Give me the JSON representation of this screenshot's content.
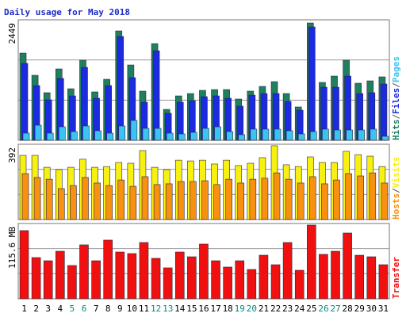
{
  "title": "Daily usage for May 2018",
  "chart_data": [
    {
      "type": "bar",
      "ylim": [
        0,
        2449
      ],
      "yticks": [
        2449
      ],
      "grid_divisions": 3,
      "legend_separator": "/",
      "legend_reversed": false,
      "series": [
        {
          "name": "Hits",
          "color": "#1f8060",
          "values": [
            1772,
            1321,
            967,
            1450,
            1047,
            1627,
            983,
            1240,
            2223,
            1530,
            999,
            1965,
            628,
            902,
            950,
            1015,
            1031,
            1031,
            838,
            999,
            1095,
            1192,
            950,
            677,
            2384,
            1176,
            1305,
            1627,
            1160,
            1208,
            1289
          ]
        },
        {
          "name": "Files",
          "color": "#1c2ae0",
          "values": [
            1563,
            1112,
            822,
            1257,
            902,
            1482,
            854,
            1112,
            2110,
            1273,
            773,
            1820,
            548,
            773,
            806,
            886,
            902,
            854,
            693,
            918,
            950,
            950,
            789,
            612,
            2304,
            1079,
            1079,
            1305,
            950,
            967,
            1144
          ]
        },
        {
          "name": "Pages",
          "color": "#3cc4f0",
          "values": [
            145,
            306,
            145,
            274,
            177,
            290,
            193,
            145,
            290,
            403,
            242,
            242,
            145,
            129,
            161,
            242,
            274,
            177,
            113,
            226,
            226,
            226,
            193,
            129,
            177,
            226,
            209,
            209,
            209,
            226,
            81
          ]
        }
      ]
    },
    {
      "type": "bar",
      "ylim": [
        0,
        392
      ],
      "yticks": [
        392
      ],
      "grid_divisions": 3,
      "legend_separator": "/",
      "legend_reversed": true,
      "series": [
        {
          "name": "Visits",
          "color": "#f8f010",
          "values": [
            334,
            334,
            272,
            260,
            272,
            314,
            272,
            276,
            297,
            293,
            359,
            272,
            260,
            309,
            305,
            309,
            289,
            309,
            281,
            293,
            322,
            384,
            285,
            276,
            326,
            297,
            297,
            355,
            338,
            330,
            276
          ]
        },
        {
          "name": "Hosts",
          "color": "#f89010",
          "values": [
            239,
            219,
            210,
            161,
            177,
            219,
            190,
            177,
            206,
            173,
            223,
            182,
            186,
            198,
            198,
            202,
            182,
            210,
            190,
            210,
            215,
            243,
            210,
            190,
            223,
            186,
            206,
            239,
            227,
            243,
            190
          ]
        }
      ]
    },
    {
      "type": "bar",
      "ylim": [
        0,
        115.6
      ],
      "yticks": [
        {
          "value": 115.6,
          "label": "115.6 MB"
        }
      ],
      "grid_divisions": 3,
      "categories": [
        "1",
        "2",
        "3",
        "4",
        "5",
        "6",
        "7",
        "8",
        "9",
        "10",
        "11",
        "12",
        "13",
        "14",
        "15",
        "16",
        "17",
        "18",
        "19",
        "20",
        "21",
        "22",
        "23",
        "24",
        "25",
        "26",
        "27",
        "28",
        "29",
        "30",
        "31"
      ],
      "category_colors": [
        "#000000",
        "#000000",
        "#000000",
        "#000000",
        "#008a80",
        "#008a80",
        "#000000",
        "#000000",
        "#000000",
        "#000000",
        "#000000",
        "#008a80",
        "#008a80",
        "#000000",
        "#000000",
        "#000000",
        "#000000",
        "#000000",
        "#008a80",
        "#008a80",
        "#000000",
        "#000000",
        "#000000",
        "#000000",
        "#000000",
        "#008a80",
        "#008a80",
        "#000000",
        "#000000",
        "#000000",
        "#000000"
      ],
      "series": [
        {
          "name": "Transfer",
          "color": "#f01010",
          "values": [
            104.7,
            63.3,
            58.4,
            73.0,
            51.1,
            82.8,
            58.4,
            90.1,
            71.8,
            69.4,
            86.4,
            62.1,
            47.5,
            71.8,
            64.5,
            84.0,
            58.4,
            48.7,
            58.4,
            45.0,
            66.9,
            52.3,
            86.4,
            43.8,
            113.2,
            68.2,
            73.0,
            101.0,
            66.9,
            64.5,
            52.3
          ]
        }
      ]
    }
  ]
}
